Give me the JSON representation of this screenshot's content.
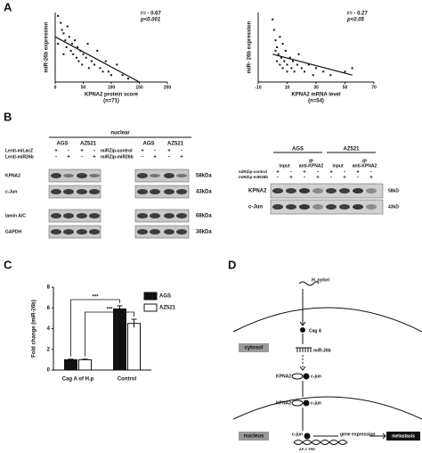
{
  "panel_labels": [
    "A",
    "B",
    "C",
    "D"
  ],
  "chart_data": [
    {
      "type": "scatter",
      "y_label": "miR-26b expression",
      "x_label": "KPNA2 protein score",
      "note": "(n=71)",
      "annotations": [
        "r= - 0.67",
        "p<0.001"
      ],
      "color": "#111111",
      "xlim": [
        0,
        200
      ],
      "xticks": [
        0,
        50,
        100,
        150,
        200
      ],
      "ylim": [
        0,
        2
      ],
      "x": [
        5,
        10,
        12,
        15,
        18,
        20,
        22,
        25,
        28,
        30,
        32,
        35,
        38,
        40,
        42,
        45,
        48,
        50,
        55,
        58,
        60,
        65,
        70,
        75,
        80,
        85,
        90,
        95,
        100,
        110,
        120,
        130,
        5,
        15
      ],
      "values": [
        1.9,
        1.7,
        1.5,
        1.4,
        1.2,
        1.0,
        1.6,
        1.3,
        0.9,
        1.1,
        0.8,
        1.2,
        0.7,
        1.0,
        0.6,
        0.9,
        0.5,
        0.8,
        0.7,
        1.1,
        0.4,
        0.6,
        0.5,
        0.9,
        0.4,
        0.3,
        0.6,
        0.3,
        0.2,
        0.5,
        0.2,
        0.1,
        1.1,
        0.8
      ],
      "fit": {
        "x": [
          0,
          150
        ],
        "values": [
          1.3,
          0
        ]
      }
    },
    {
      "type": "scatter",
      "y_label": "miR- 26b expression",
      "x_label": "KPNA2 mRNA level",
      "note": "(n=54)",
      "annotations": [
        "r= - 0.27",
        "p<0.05"
      ],
      "color": "#111111",
      "xlim": [
        -10,
        70
      ],
      "xticks": [
        -10,
        10,
        30,
        50,
        70
      ],
      "ylim": [
        0,
        2
      ],
      "x": [
        0,
        1,
        2,
        2,
        3,
        3,
        4,
        5,
        5,
        6,
        7,
        7,
        8,
        9,
        10,
        10,
        12,
        13,
        14,
        15,
        17,
        18,
        20,
        22,
        25,
        28,
        30,
        35,
        40,
        50,
        55
      ],
      "values": [
        1.8,
        1.5,
        1.2,
        0.9,
        1.0,
        0.6,
        0.8,
        1.3,
        0.5,
        0.7,
        1.1,
        0.4,
        0.6,
        0.9,
        0.5,
        0.3,
        0.7,
        0.4,
        0.6,
        0.3,
        0.5,
        0.8,
        0.4,
        0.3,
        0.5,
        0.2,
        0.4,
        0.3,
        0.2,
        0.3,
        0.4
      ],
      "fit": {
        "x": [
          0,
          55
        ],
        "values": [
          0.8,
          0.2
        ]
      }
    },
    {
      "type": "bar",
      "y_label": "Fold change (miR-26b)",
      "ylim": [
        0,
        8
      ],
      "yticks": [
        0,
        2,
        4,
        6,
        8
      ],
      "categories": [
        "Cag A of H.p",
        "Control"
      ],
      "series": [
        {
          "name": "AGS",
          "color": "#111111",
          "values": [
            1,
            5.9
          ],
          "errors": [
            0.05,
            0.3
          ]
        },
        {
          "name": "AZ521",
          "color": "#ffffff",
          "values": [
            1,
            4.5
          ],
          "errors": [
            0.05,
            0.4
          ]
        }
      ],
      "annotations": [
        "***",
        "***"
      ]
    }
  ],
  "blot_left": {
    "title": "nuclear",
    "cell_lines": [
      "AGS",
      "AZ521",
      "AGS",
      "AZ521"
    ],
    "treatments_left": [
      {
        "label": "Lenti-miLacZ",
        "signs": [
          "+",
          "-",
          "+",
          "-"
        ]
      },
      {
        "label": "Lenti-miR26b",
        "signs": [
          "-",
          "+",
          "-",
          "+"
        ]
      }
    ],
    "treatments_right": [
      {
        "label": "miRZip-control",
        "signs": [
          "+",
          "-",
          "+",
          "-"
        ]
      },
      {
        "label": "miRZip-miR26b",
        "signs": [
          "-",
          "+",
          "-",
          "+"
        ]
      }
    ],
    "bands": [
      {
        "label": "KPNA2",
        "size": "58kDa"
      },
      {
        "label": "c-Jun",
        "size": "43kDa"
      },
      {
        "label": "lamin A/C",
        "size": "68kDa"
      },
      {
        "label": "GAPDH",
        "size": "36kDa"
      }
    ]
  },
  "blot_right": {
    "cell_lines": [
      "AGS",
      "AZ521"
    ],
    "lane_groups": [
      {
        "lines": [
          "input"
        ]
      },
      {
        "lines": [
          "IP",
          "anti-KPNA2"
        ]
      },
      {
        "lines": [
          "input"
        ]
      },
      {
        "lines": [
          "IP",
          "anti-KPNA2"
        ]
      }
    ],
    "treatments": [
      {
        "label": "miRZip-control",
        "signs": [
          "+",
          "-",
          "+",
          "-",
          "+",
          "-",
          "+",
          "-"
        ]
      },
      {
        "label": "miRZip-miR26b",
        "signs": [
          "-",
          "+",
          "-",
          "+",
          "-",
          "+",
          "-",
          "+"
        ]
      }
    ],
    "bands": [
      {
        "label": "KPNA2",
        "size": "58kD"
      },
      {
        "label": "c-Jun",
        "size": "43kD"
      }
    ]
  },
  "diagram": {
    "pathogen": "H. pylori",
    "effector": "Cag A",
    "mirna": "miR-26b",
    "cytosol": "cytosol",
    "complex_cytosol": [
      "KPNA2",
      "c-jun"
    ],
    "complex_nuclear": [
      "KPNA2",
      "c-jun"
    ],
    "nucleus": "nucleus",
    "factor": "c-jun",
    "outcome": "gene expression",
    "result": "metastasis",
    "element": "AP-1 TRE"
  }
}
